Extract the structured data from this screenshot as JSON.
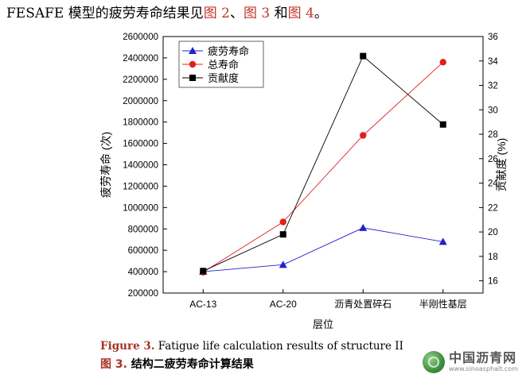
{
  "intro": {
    "text_a": "FESAFE 模型的疲劳寿命结果见",
    "ref1": "图 2",
    "sep": "、",
    "ref2": "图 3",
    "and": " 和",
    "ref3": "图 4",
    "end": "。"
  },
  "caption": {
    "en_fig": "Figure 3.",
    "en_text": " Fatigue life calculation results of structure II",
    "zh_fig": "图 3.",
    "zh_text": "  结构二疲劳寿命计算结果"
  },
  "watermark": {
    "zh": "中国沥青网",
    "en": "www.sinoasphalt.com"
  },
  "chart_data": {
    "type": "line",
    "categories": [
      "AC-13",
      "AC-20",
      "沥青处置碎石",
      "半刚性基层"
    ],
    "xlabel": "层位",
    "ylabel": "疲劳寿命 (次)",
    "y2label": "贡献度 (%)",
    "ylim": [
      200000,
      2600000
    ],
    "yticks": [
      200000,
      400000,
      600000,
      800000,
      1000000,
      1200000,
      1400000,
      1600000,
      1800000,
      2000000,
      2200000,
      2400000,
      2600000
    ],
    "y2lim": [
      15,
      36
    ],
    "y2ticks": [
      16,
      18,
      20,
      22,
      24,
      26,
      28,
      30,
      32,
      34,
      36
    ],
    "legend_position": "top-left",
    "series": [
      {
        "name": "疲劳寿命",
        "axis": "left",
        "color": "#2222cc",
        "marker": "triangle",
        "values": [
          400000,
          465000,
          810000,
          680000
        ]
      },
      {
        "name": "总寿命",
        "axis": "left",
        "color": "#e02020",
        "marker": "circle",
        "values": [
          395000,
          865000,
          1675000,
          2360000
        ]
      },
      {
        "name": "贡献度",
        "axis": "right",
        "color": "#000000",
        "marker": "square",
        "values": [
          16.8,
          19.8,
          34.4,
          28.8
        ]
      }
    ]
  }
}
